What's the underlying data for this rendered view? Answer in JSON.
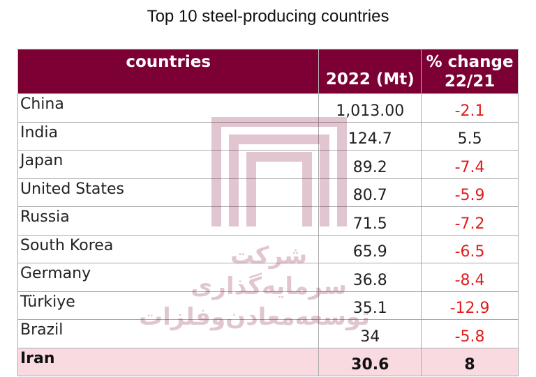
{
  "title": "Top 10 steel-producing countries",
  "colors": {
    "header_bg": "#7c0033",
    "negative": "#e31b1b",
    "highlight_row": "#fad6de"
  },
  "watermark": {
    "icon": "company-logo-icon",
    "text_line1": "شرکت سرمایه‌گذاری",
    "text_line2": "توسعه‌معادن‌و‌فلزات"
  },
  "table": {
    "headers": [
      "countries",
      "2022 (Mt)",
      "% change 22/21"
    ],
    "rows": [
      {
        "country": "China",
        "production": "1,013.00",
        "change": "-2.1"
      },
      {
        "country": "India",
        "production": "124.7",
        "change": "5.5"
      },
      {
        "country": "Japan",
        "production": "89.2",
        "change": "-7.4"
      },
      {
        "country": "United States",
        "production": "80.7",
        "change": "-5.9"
      },
      {
        "country": "Russia",
        "production": "71.5",
        "change": "-7.2"
      },
      {
        "country": "South Korea",
        "production": "65.9",
        "change": "-6.5"
      },
      {
        "country": "Germany",
        "production": "36.8",
        "change": "-8.4"
      },
      {
        "country": "Türkiye",
        "production": "35.1",
        "change": "-12.9"
      },
      {
        "country": "Brazil",
        "production": "34",
        "change": "-5.8"
      },
      {
        "country": "Iran",
        "production": "30.6",
        "change": "8",
        "highlighted": true
      }
    ]
  }
}
